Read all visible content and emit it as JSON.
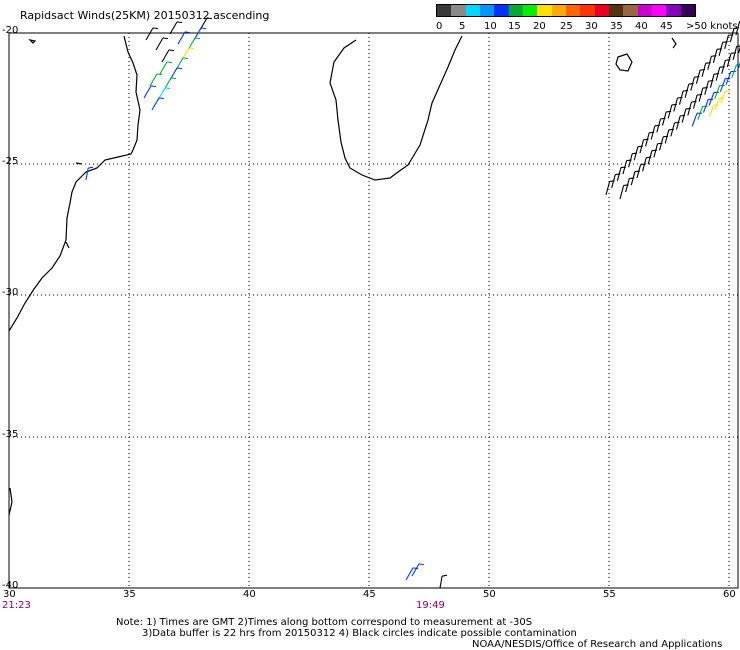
{
  "title": "Rapidsact Winds(25KM) 20150312 ascending",
  "colorbar": {
    "colors": [
      "#3a3a3a",
      "#8a8a8a",
      "#00d7ff",
      "#0096ff",
      "#0033ff",
      "#00aa33",
      "#00ee00",
      "#ffe000",
      "#ffaa00",
      "#ff6600",
      "#ff3300",
      "#ee0022",
      "#553311",
      "#996644",
      "#cc00cc",
      "#ff00ff",
      "#8800bb",
      "#330055"
    ],
    "ticks": [
      "0",
      "5",
      "10",
      "15",
      "20",
      "25",
      "30",
      "35",
      "40",
      "45",
      ">50 knots"
    ]
  },
  "axes": {
    "lon_labels": [
      "30",
      "35",
      "40",
      "45",
      "50",
      "55",
      "60"
    ],
    "lat_labels": [
      "-20",
      "-25",
      "-30",
      "-35",
      "-40"
    ]
  },
  "times": {
    "left": "21:23",
    "middle": "19:49"
  },
  "notes": [
    "Note: 1) Times are GMT 2)Times along bottom correspond to measurement at -30S",
    "3)Data buffer is 22 hrs from 20150312 4) Black circles indicate possible contamination",
    "NOAA/NESDIS/Office of Research and Applications"
  ]
}
